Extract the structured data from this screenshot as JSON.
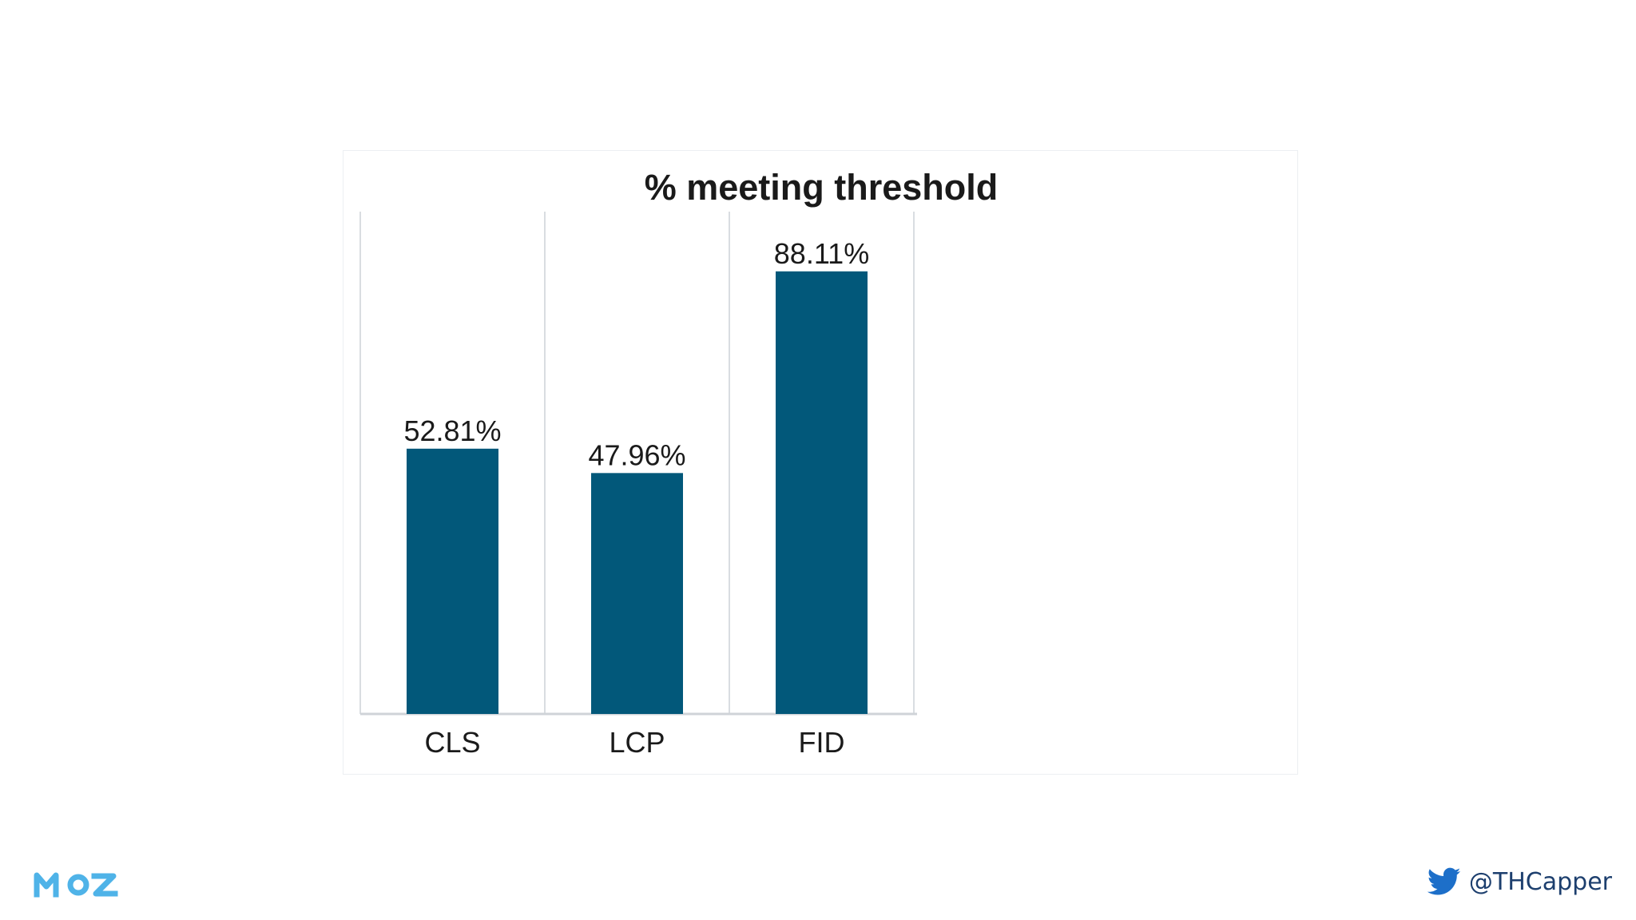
{
  "slide": {
    "brand": "MOZ",
    "twitter_handle": "@THCapper"
  },
  "colors": {
    "bar": "#02587a",
    "grid": "#d9dde1",
    "axis": "#cfd3d8",
    "label_text": "#1a1a1a",
    "moz_logo": "#4fb3e8",
    "twitter_blue": "#1d6fc9",
    "handle_text": "#1d3f6e"
  },
  "icons": {
    "brand": "moz-logo",
    "social": "twitter-bird-icon"
  },
  "chart_data": {
    "type": "bar",
    "title": "% meeting threshold",
    "categories": [
      "CLS",
      "LCP",
      "FID"
    ],
    "values": [
      52.81,
      47.96,
      88.11
    ],
    "data_labels": [
      "52.81%",
      "47.96%",
      "88.11%"
    ],
    "xlabel": "",
    "ylabel": "",
    "ylim": [
      0,
      100
    ],
    "grid": "vertical",
    "legend": "none"
  }
}
